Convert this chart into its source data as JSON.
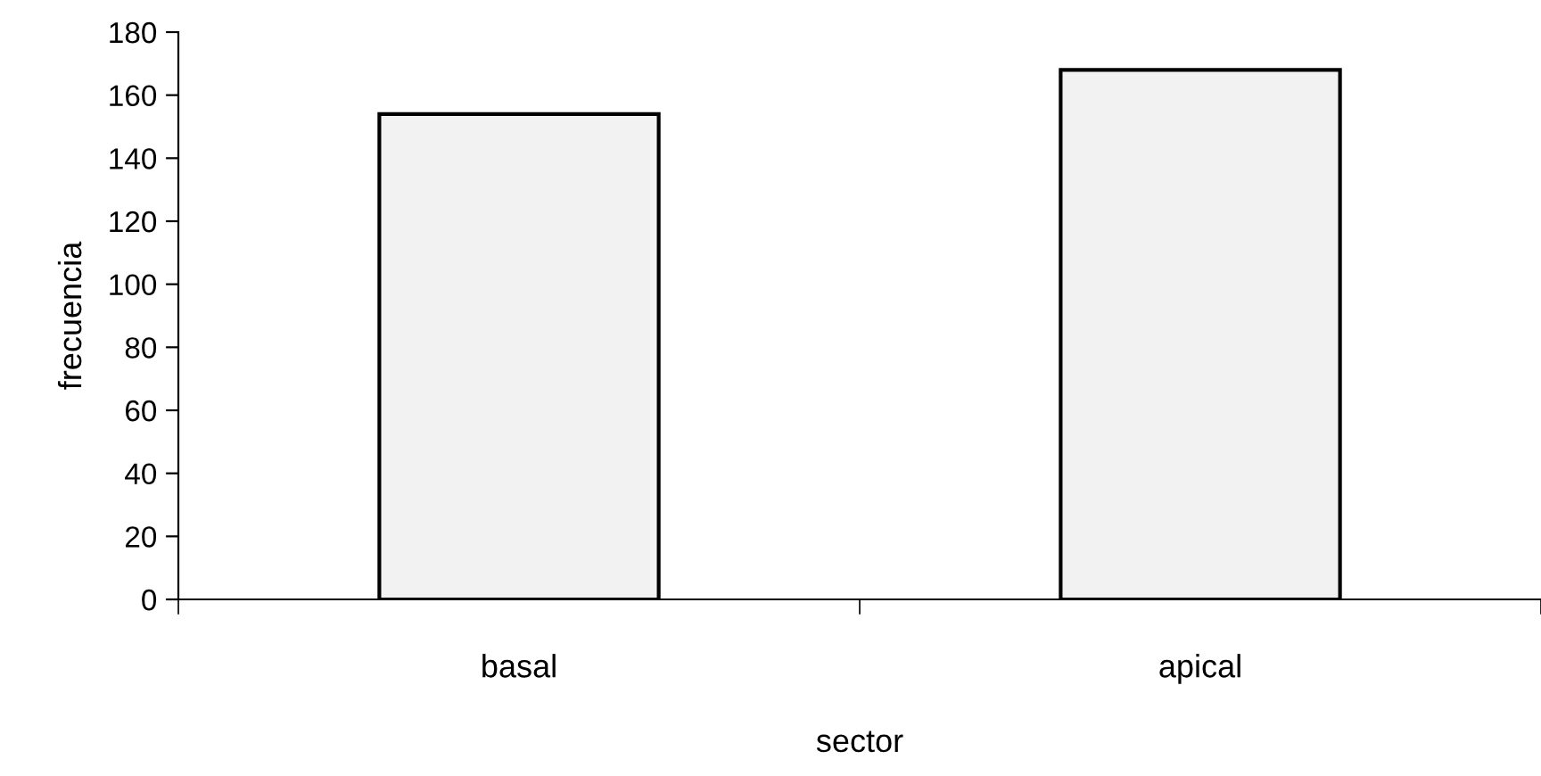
{
  "chart_data": {
    "type": "bar",
    "xlabel": "sector",
    "ylabel": "frecuencia",
    "categories": [
      "basal",
      "apical"
    ],
    "values": [
      154,
      168
    ],
    "color": "#f2f2f2",
    "ylim": [
      0,
      180
    ],
    "yticks": [
      0,
      20,
      40,
      60,
      80,
      100,
      120,
      140,
      160,
      180
    ],
    "grid": false,
    "legend": false
  }
}
